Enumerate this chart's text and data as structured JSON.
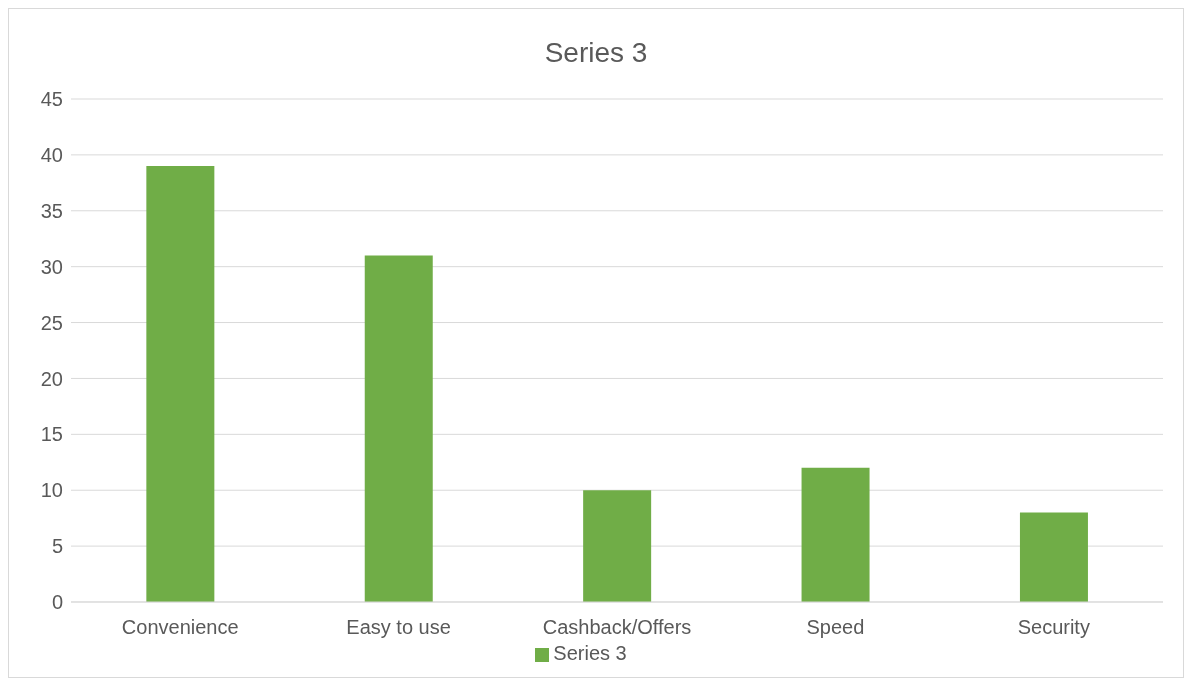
{
  "chart_data": {
    "type": "bar",
    "title": "Series 3",
    "categories": [
      "Convenience",
      "Easy to use",
      "Cashback/Offers",
      "Speed",
      "Security"
    ],
    "series": [
      {
        "name": "Series 3",
        "color": "#70ad47",
        "values": [
          39,
          31,
          10,
          12,
          8
        ]
      }
    ],
    "ylim": [
      0,
      45
    ],
    "yticks": [
      0,
      5,
      10,
      15,
      20,
      25,
      30,
      35,
      40,
      45
    ],
    "grid": "y",
    "legend": "bottom"
  }
}
